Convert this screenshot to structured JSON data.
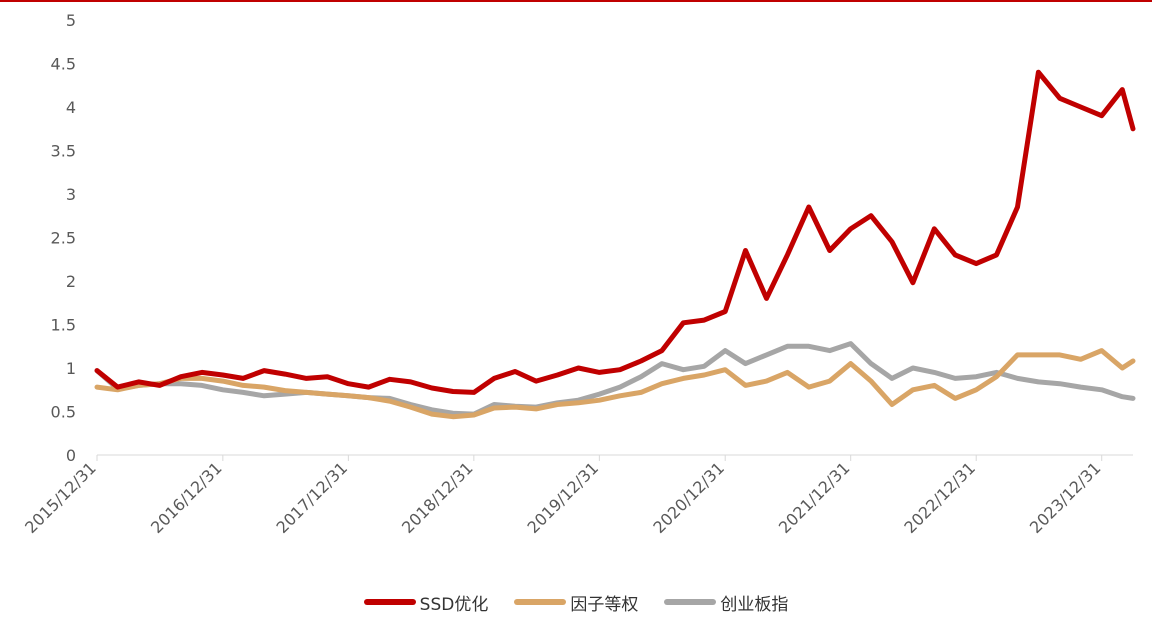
{
  "chart_data": {
    "type": "line",
    "title": "",
    "xlabel": "",
    "ylabel": "",
    "ylim": [
      0,
      5
    ],
    "yticks": [
      "0",
      "0.5",
      "1",
      "1.5",
      "2",
      "2.5",
      "3",
      "3.5",
      "4",
      "4.5",
      "5"
    ],
    "xtick_labels": [
      "2015/12/31",
      "2016/12/31",
      "2017/12/31",
      "2018/12/31",
      "2019/12/31",
      "2020/12/31",
      "2021/12/31",
      "2022/12/31",
      "2023/12/31"
    ],
    "xlim": [
      "2015/12/31",
      "2024/03/31"
    ],
    "grid": false,
    "legend_position": "bottom",
    "x": [
      "2015/12/31",
      "2016/02/29",
      "2016/04/30",
      "2016/06/30",
      "2016/08/31",
      "2016/10/31",
      "2016/12/31",
      "2017/02/28",
      "2017/04/30",
      "2017/06/30",
      "2017/08/31",
      "2017/10/31",
      "2017/12/31",
      "2018/02/28",
      "2018/04/30",
      "2018/06/30",
      "2018/08/31",
      "2018/10/31",
      "2018/12/31",
      "2019/02/28",
      "2019/04/30",
      "2019/06/30",
      "2019/08/31",
      "2019/10/31",
      "2019/12/31",
      "2020/02/29",
      "2020/04/30",
      "2020/06/30",
      "2020/08/31",
      "2020/10/31",
      "2020/12/31",
      "2021/02/28",
      "2021/04/30",
      "2021/06/30",
      "2021/08/31",
      "2021/10/31",
      "2021/12/31",
      "2022/02/28",
      "2022/04/30",
      "2022/06/30",
      "2022/08/31",
      "2022/10/31",
      "2022/12/31",
      "2023/02/28",
      "2023/04/30",
      "2023/06/30",
      "2023/08/31",
      "2023/10/31",
      "2023/12/31",
      "2024/02/29",
      "2024/03/31"
    ],
    "series": [
      {
        "name": "SSD优化",
        "color": "#c00000",
        "values": [
          0.97,
          0.78,
          0.84,
          0.8,
          0.9,
          0.95,
          0.92,
          0.88,
          0.97,
          0.93,
          0.88,
          0.9,
          0.82,
          0.78,
          0.87,
          0.84,
          0.77,
          0.73,
          0.72,
          0.88,
          0.96,
          0.85,
          0.92,
          1.0,
          0.95,
          0.98,
          1.08,
          1.2,
          1.52,
          1.55,
          1.65,
          2.35,
          1.8,
          2.3,
          2.85,
          2.35,
          2.6,
          2.75,
          2.45,
          1.98,
          2.6,
          2.3,
          2.2,
          2.3,
          2.85,
          4.4,
          4.1,
          4.0,
          3.9,
          4.2,
          3.75
        ]
      },
      {
        "name": "因子等权",
        "color": "#d9a566",
        "values": [
          0.78,
          0.75,
          0.8,
          0.82,
          0.88,
          0.88,
          0.85,
          0.8,
          0.78,
          0.74,
          0.72,
          0.7,
          0.68,
          0.66,
          0.62,
          0.55,
          0.47,
          0.44,
          0.46,
          0.54,
          0.55,
          0.53,
          0.58,
          0.6,
          0.63,
          0.68,
          0.72,
          0.82,
          0.88,
          0.92,
          0.98,
          0.8,
          0.85,
          0.95,
          0.78,
          0.85,
          1.05,
          0.85,
          0.58,
          0.75,
          0.8,
          0.65,
          0.75,
          0.9,
          1.15,
          1.15,
          1.15,
          1.1,
          1.2,
          1.0,
          1.08
        ]
      },
      {
        "name": "创业板指",
        "color": "#a6a6a6",
        "values": [
          0.97,
          0.76,
          0.8,
          0.82,
          0.82,
          0.8,
          0.75,
          0.72,
          0.68,
          0.7,
          0.72,
          0.7,
          0.68,
          0.66,
          0.65,
          0.58,
          0.52,
          0.48,
          0.47,
          0.58,
          0.56,
          0.55,
          0.6,
          0.63,
          0.7,
          0.78,
          0.9,
          1.05,
          0.98,
          1.02,
          1.2,
          1.05,
          1.15,
          1.25,
          1.25,
          1.2,
          1.28,
          1.05,
          0.88,
          1.0,
          0.95,
          0.88,
          0.9,
          0.95,
          0.88,
          0.84,
          0.82,
          0.78,
          0.75,
          0.67,
          0.65
        ]
      }
    ]
  },
  "colors": {
    "axis": "#d9d9d9",
    "tick_text": "#595959",
    "top_rule": "#c00000"
  }
}
